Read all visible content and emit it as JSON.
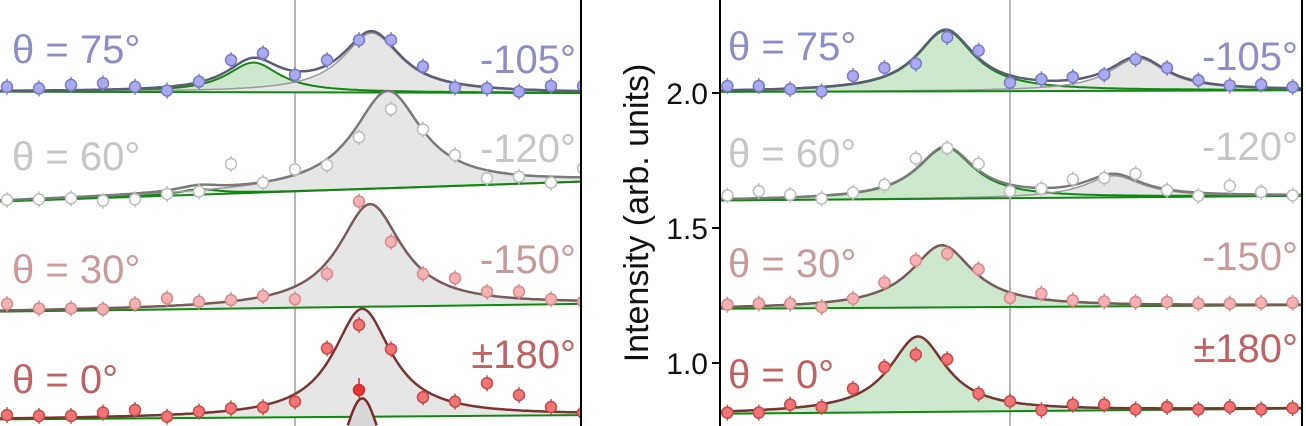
{
  "chart_data": [
    {
      "type": "scatter",
      "panel": "left",
      "xlim": [
        -9.3,
        9.0
      ],
      "ylim": [
        0.6,
        2.34
      ],
      "vline_x": 0,
      "x": [
        -9,
        -8,
        -7,
        -6,
        -5,
        -4,
        -3,
        -2,
        -1,
        0,
        1,
        2,
        3,
        4,
        5,
        6,
        7,
        8,
        9
      ],
      "series": [
        {
          "label": "θ = 75°",
          "right_label": "-105°",
          "color": "#8d8dc7",
          "marker_fill": "#aaaaf0",
          "marker_stroke": "#7b7bc4",
          "fit_color": "#5c5c78",
          "y": [
            2.023,
            2.017,
            2.03,
            2.036,
            2.023,
            2.009,
            2.042,
            2.122,
            2.147,
            2.067,
            2.122,
            2.196,
            2.196,
            2.098,
            2.021,
            2.017,
            2.005,
            2.026,
            2.026
          ],
          "baseline": [
            2.005,
            2.0
          ],
          "peaks": [
            {
              "center": -1.3,
              "amplitude": 0.11,
              "width": 1.0,
              "fill": "green"
            },
            {
              "center": 2.4,
              "amplitude": 0.22,
              "width": 1.1,
              "fill": "grey"
            }
          ]
        },
        {
          "label": "θ = 60°",
          "right_label": "-120°",
          "color": "#c6c6c6",
          "marker_fill": "#ffffff",
          "marker_stroke": "#bdbdbd",
          "fit_color": "#7a7a7a",
          "y": [
            1.604,
            1.606,
            1.61,
            1.601,
            1.606,
            1.626,
            1.635,
            1.737,
            1.668,
            1.717,
            1.733,
            1.836,
            1.94,
            1.865,
            1.77,
            1.684,
            1.69,
            1.668,
            1.721
          ],
          "baseline": [
            1.598,
            1.672
          ],
          "peaks": [
            {
              "center": -3.0,
              "amplitude": 0.02,
              "width": 0.8,
              "fill": "green"
            },
            {
              "center": 2.9,
              "amplitude": 0.36,
              "width": 1.3,
              "fill": "grey"
            }
          ]
        },
        {
          "label": "θ = 30°",
          "right_label": "-150°",
          "color": "#c99a9a",
          "marker_fill": "#f6b2b2",
          "marker_stroke": "#d48c8c",
          "fit_color": "#7a5a5a",
          "y": [
            1.219,
            1.202,
            1.202,
            1.199,
            1.219,
            1.24,
            1.227,
            1.233,
            1.248,
            1.236,
            1.33,
            1.598,
            1.449,
            1.33,
            1.314,
            1.264,
            1.264,
            1.236,
            1.227
          ],
          "baseline": [
            1.19,
            1.219
          ],
          "peaks": [
            {
              "center": 2.35,
              "amplitude": 0.38,
              "width": 1.2,
              "fill": "grey"
            }
          ]
        },
        {
          "label": "θ = 0°",
          "right_label": "±180°",
          "color": "#c06262",
          "marker_fill": "#f27474",
          "marker_stroke": "#c44c4c",
          "fit_color": "#7a3434",
          "y": [
            0.807,
            0.804,
            0.804,
            0.816,
            0.826,
            0.801,
            0.82,
            0.832,
            0.836,
            0.857,
            1.054,
            1.141,
            1.051,
            0.873,
            0.857,
            0.925,
            0.881,
            0.837,
            0.816
          ],
          "baseline": [
            0.791,
            0.807
          ],
          "peaks": [
            {
              "center": 2.1,
              "amplitude": 0.4,
              "width": 1.1,
              "fill": "grey"
            }
          ]
        }
      ],
      "partial_trace": {
        "extra_point": {
          "x": 2,
          "y": 0.9,
          "color": "#e83434"
        },
        "peak": {
          "center": 2.1,
          "top": 0.869,
          "width": 0.9
        },
        "fit_color": "#7a2a2a"
      }
    },
    {
      "type": "scatter",
      "panel": "right",
      "xlim": [
        -9.27,
        9.3
      ],
      "ylim": [
        0.6,
        2.34
      ],
      "vline_x": 0,
      "ylabel": "Intensity (arb. units)",
      "yticks": [
        2.0,
        1.5,
        1.0
      ],
      "ytick_labels": [
        "2.0",
        "1.5",
        "1.0"
      ],
      "x": [
        -9,
        -8,
        -7,
        -6,
        -5,
        -4,
        -3,
        -2,
        -1,
        0,
        1,
        2,
        3,
        4,
        5,
        6,
        7,
        8,
        9
      ],
      "series": [
        {
          "label": "θ = 75°",
          "right_label": "-105°",
          "color": "#8d8dc7",
          "marker_fill": "#aaaaf0",
          "marker_stroke": "#7b7bc4",
          "fit_color": "#5c5c78",
          "y": [
            2.026,
            2.026,
            2.014,
            2.006,
            2.063,
            2.093,
            2.109,
            2.207,
            2.157,
            2.038,
            2.051,
            2.059,
            2.068,
            2.125,
            2.093,
            2.047,
            2.028,
            2.031,
            2.022
          ],
          "baseline": [
            2.004,
            2.01
          ],
          "peaks": [
            {
              "center": -2.05,
              "amplitude": 0.225,
              "width": 1.1,
              "fill": "green"
            },
            {
              "center": 4.07,
              "amplitude": 0.12,
              "width": 1.1,
              "fill": "grey"
            }
          ]
        },
        {
          "label": "θ = 60°",
          "right_label": "-120°",
          "color": "#c6c6c6",
          "marker_fill": "#ffffff",
          "marker_stroke": "#bdbdbd",
          "fit_color": "#7a7a7a",
          "y": [
            1.621,
            1.636,
            1.623,
            1.609,
            1.631,
            1.66,
            1.757,
            1.796,
            1.738,
            1.636,
            1.646,
            1.68,
            1.685,
            1.701,
            1.64,
            1.619,
            1.656,
            1.633,
            1.621
          ],
          "baseline": [
            1.602,
            1.619
          ],
          "peaks": [
            {
              "center": -2.05,
              "amplitude": 0.19,
              "width": 1.1,
              "fill": "green"
            },
            {
              "center": 3.3,
              "amplitude": 0.08,
              "width": 1.1,
              "fill": "grey"
            }
          ]
        },
        {
          "label": "θ = 30°",
          "right_label": "-150°",
          "color": "#c99a9a",
          "marker_fill": "#f6b2b2",
          "marker_stroke": "#d48c8c",
          "fit_color": "#7a5a5a",
          "y": [
            1.216,
            1.22,
            1.22,
            1.207,
            1.238,
            1.298,
            1.38,
            1.405,
            1.347,
            1.241,
            1.257,
            1.232,
            1.228,
            1.226,
            1.226,
            1.22,
            1.22,
            1.223,
            1.223
          ],
          "baseline": [
            1.201,
            1.214
          ],
          "peaks": [
            {
              "center": -2.17,
              "amplitude": 0.23,
              "width": 1.2,
              "fill": "green"
            }
          ]
        },
        {
          "label": "θ = 0°",
          "right_label": "±180°",
          "color": "#c06262",
          "marker_fill": "#f27474",
          "marker_stroke": "#c44c4c",
          "fit_color": "#7a3434",
          "y": [
            0.816,
            0.816,
            0.846,
            0.837,
            0.905,
            0.985,
            1.031,
            1.014,
            0.886,
            0.858,
            0.825,
            0.846,
            0.846,
            0.828,
            0.837,
            0.828,
            0.837,
            0.828,
            0.833
          ],
          "baseline": [
            0.812,
            0.831
          ],
          "peaks": [
            {
              "center": -2.93,
              "amplitude": 0.28,
              "width": 1.1,
              "fill": "green"
            }
          ]
        }
      ]
    }
  ],
  "colors": {
    "green_component": "#118811",
    "green_fill": "#cde8cd",
    "grey_fill": "#e6e6e6",
    "vline": "#a0a0a0",
    "axis": "#000000"
  }
}
